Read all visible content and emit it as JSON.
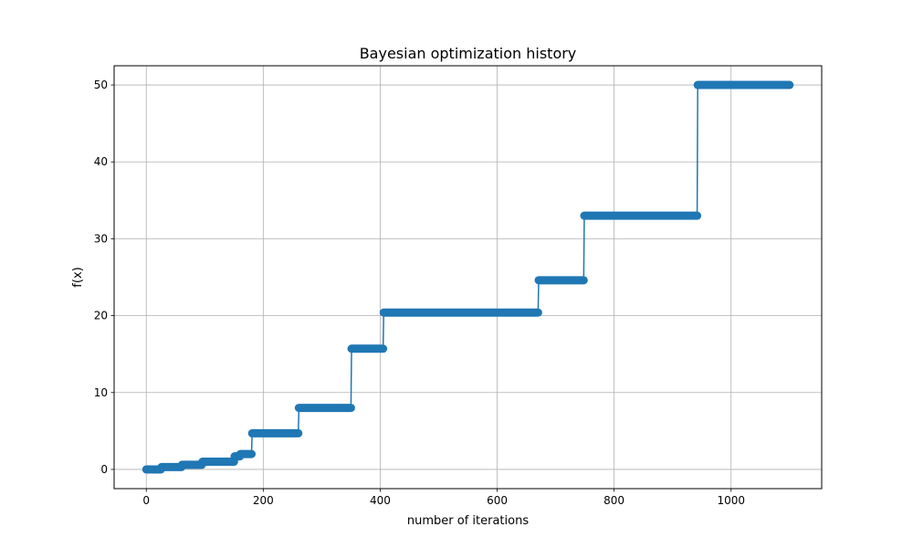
{
  "chart_data": {
    "type": "line",
    "title": "Bayesian optimization history",
    "xlabel": "number of iterations",
    "ylabel": "f(x)",
    "xlim": [
      -55,
      1155
    ],
    "ylim": [
      -2.5,
      52.5
    ],
    "xticks": [
      0,
      200,
      400,
      600,
      800,
      1000
    ],
    "yticks": [
      0,
      10,
      20,
      30,
      40,
      50
    ],
    "xtick_labels": [
      "0",
      "200",
      "400",
      "600",
      "800",
      "1000"
    ],
    "ytick_labels": [
      "0",
      "10",
      "20",
      "30",
      "40",
      "50"
    ],
    "grid": true,
    "legend": "none",
    "marker": "circle",
    "color": "#1f77b4",
    "series": [
      {
        "segments": [
          {
            "x_start": 0,
            "x_end": 25,
            "y": 0.0
          },
          {
            "x_start": 26,
            "x_end": 60,
            "y": 0.3
          },
          {
            "x_start": 61,
            "x_end": 95,
            "y": 0.6
          },
          {
            "x_start": 96,
            "x_end": 150,
            "y": 1.0
          },
          {
            "x_start": 151,
            "x_end": 160,
            "y": 1.7
          },
          {
            "x_start": 161,
            "x_end": 180,
            "y": 2.0
          },
          {
            "x_start": 181,
            "x_end": 260,
            "y": 4.7
          },
          {
            "x_start": 261,
            "x_end": 350,
            "y": 8.0
          },
          {
            "x_start": 351,
            "x_end": 405,
            "y": 15.7
          },
          {
            "x_start": 406,
            "x_end": 670,
            "y": 20.4
          },
          {
            "x_start": 671,
            "x_end": 748,
            "y": 24.6
          },
          {
            "x_start": 749,
            "x_end": 942,
            "y": 33.0
          },
          {
            "x_start": 943,
            "x_end": 1100,
            "y": 50.0
          }
        ]
      }
    ]
  }
}
